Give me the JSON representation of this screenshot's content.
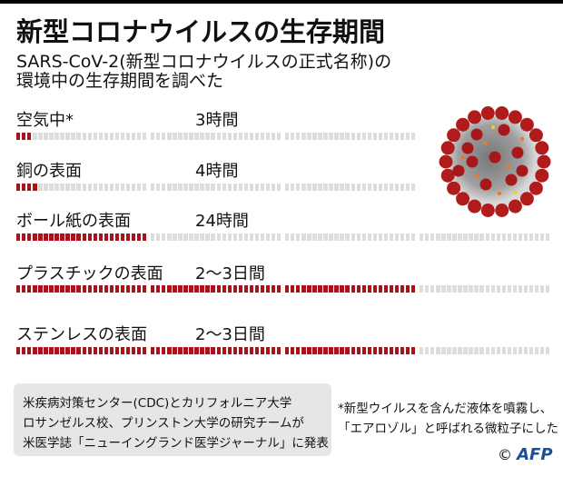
{
  "title": "新型コロナウイルスの生存期間",
  "subtitle": [
    "SARS-CoV-2(新型コロナウイルスの正式名称)の",
    "環境中の生存期間を調べた"
  ],
  "chart_data": {
    "type": "bar",
    "orientation": "horizontal",
    "unit": "hours",
    "segment_hours": 24,
    "categories": [
      "空気中*",
      "銅の表面",
      "ボール紙の表面",
      "プラスチックの表面",
      "ステンレスの表面"
    ],
    "value_labels": [
      "3時間",
      "4時間",
      "24時間",
      "2〜3日間",
      "2〜3日間"
    ],
    "values": [
      3,
      4,
      24,
      72,
      72
    ],
    "scale_max": [
      72,
      72,
      96,
      96,
      96
    ],
    "colors": {
      "filled": "#a8141e",
      "empty": "#dddddd"
    }
  },
  "source": [
    "米疾病対策センター(CDC)とカリフォルニア大学",
    "ロサンゼルス校、プリンストン大学の研究チームが",
    "米医学誌「ニューイングランド医学ジャーナル」に発表"
  ],
  "note": [
    "*新型ウイルスを含んだ液体を噴霧し、",
    "「エアロゾル」と呼ばれる微粒子にした"
  ],
  "credit": {
    "symbol": "©",
    "logo": "AFP"
  },
  "image": {
    "icon": "coronavirus-illustration"
  }
}
